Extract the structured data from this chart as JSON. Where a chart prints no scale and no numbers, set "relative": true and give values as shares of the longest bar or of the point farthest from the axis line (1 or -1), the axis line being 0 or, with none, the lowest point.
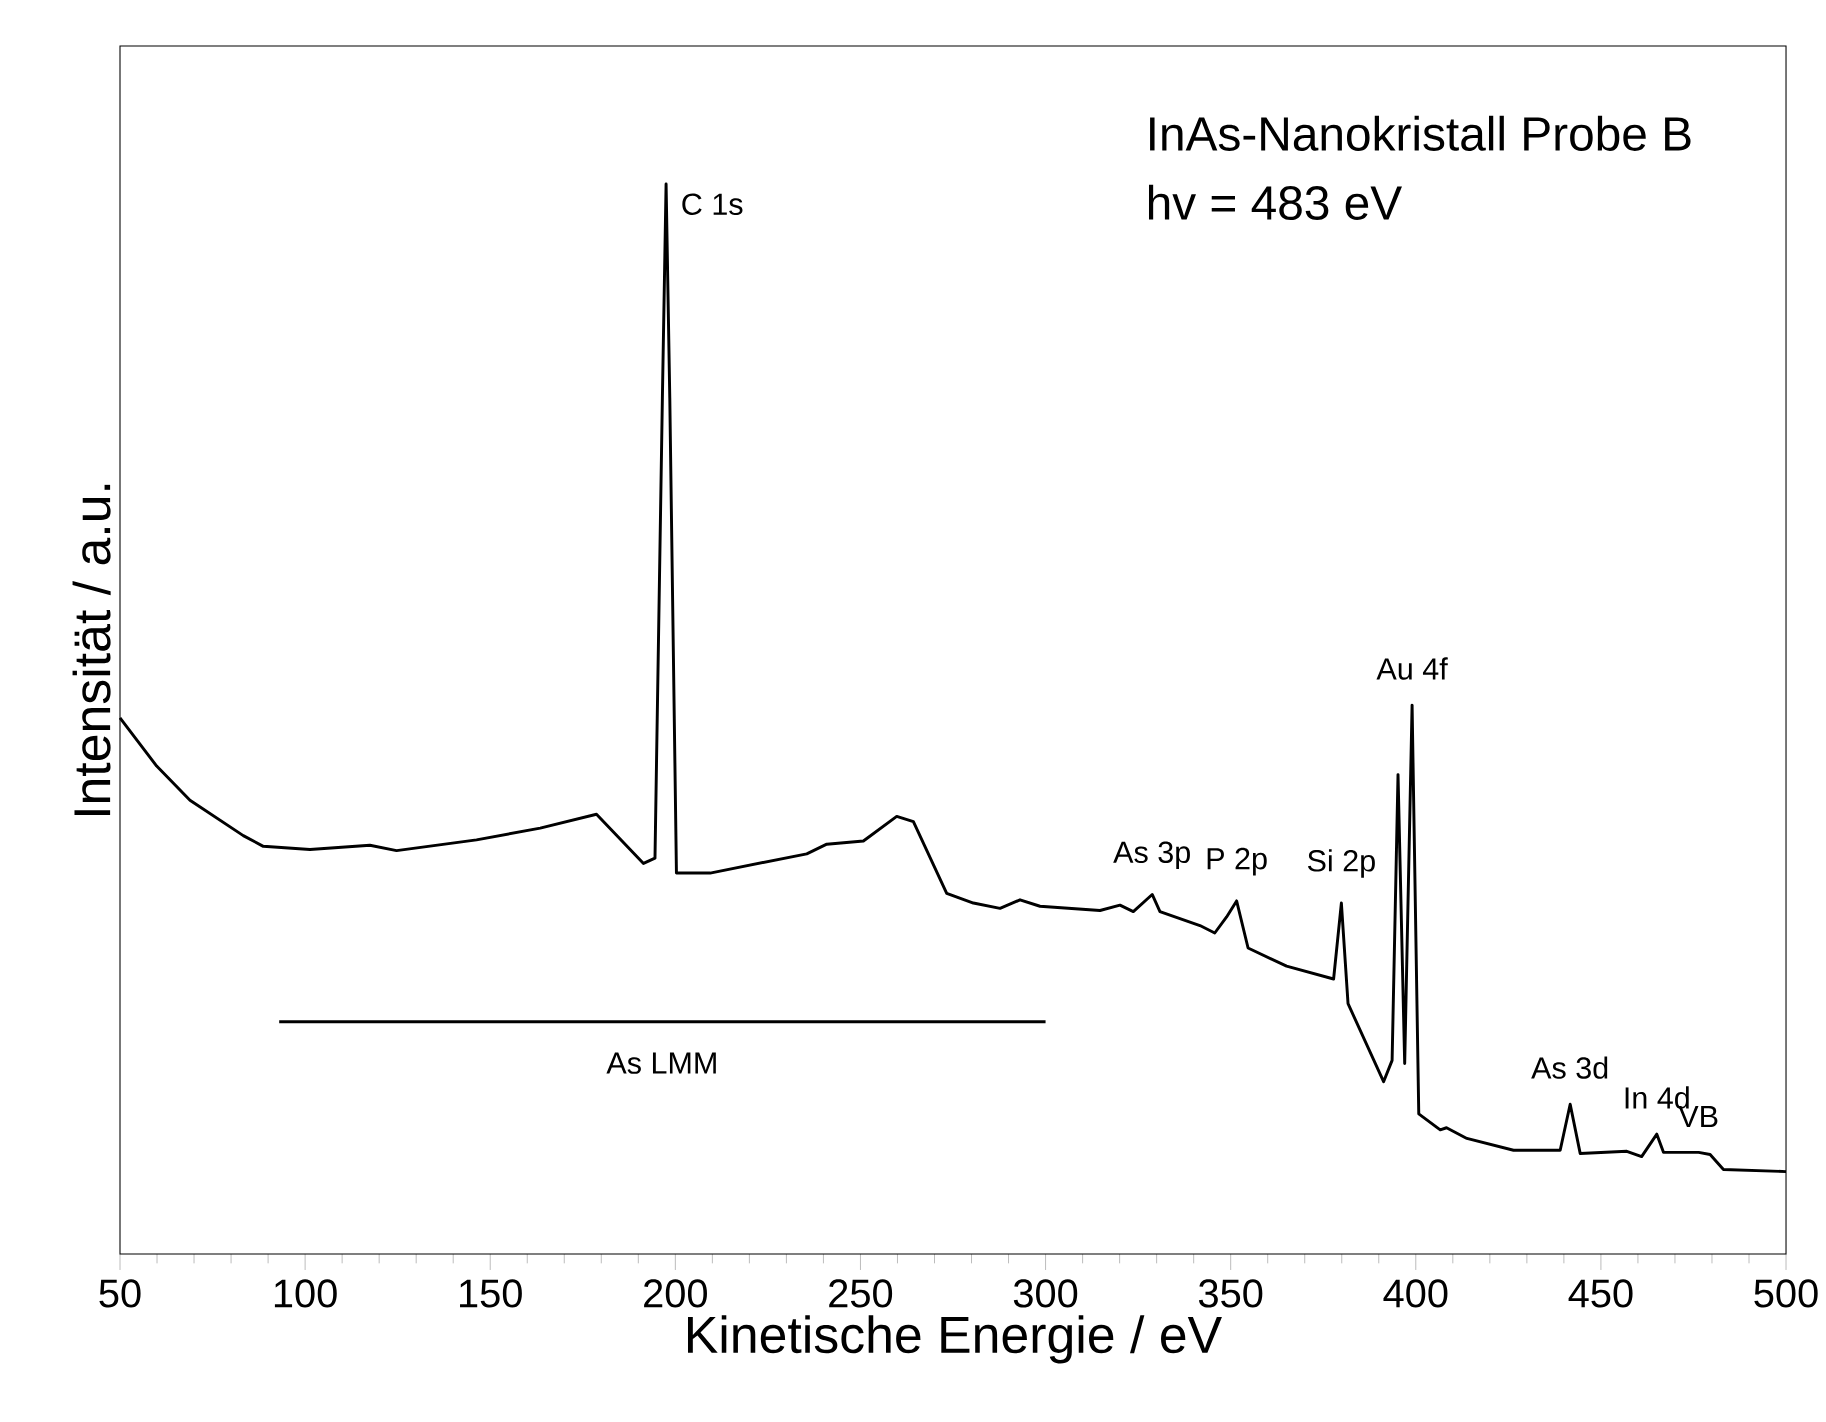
{
  "chart_data": {
    "type": "line",
    "title": "InAs-Nanokristall Probe B",
    "subtitle": "hv = 483 eV",
    "xlabel": "Kinetische Energie / eV",
    "ylabel": "Intensität / a.u.",
    "relative": true,
    "xlim": [
      50,
      500
    ],
    "xticks": [
      50,
      100,
      150,
      200,
      250,
      300,
      350,
      400,
      450,
      500
    ],
    "series": [
      {
        "color": "#000000",
        "x": [
          50,
          59.9,
          68.9,
          83.3,
          88.7,
          101.3,
          117.5,
          124.7,
          146.3,
          163.5,
          178.7,
          191.4,
          194.5,
          196.5,
          197.5,
          198.5,
          200.3,
          209.4,
          235.5,
          240.9,
          250.8,
          259.8,
          264.3,
          273.3,
          280.5,
          287.7,
          293.1,
          298.5,
          314.7,
          320.1,
          323.7,
          328.8,
          330.9,
          341.7,
          345.7,
          348.9,
          351.6,
          354.7,
          365.1,
          377.8,
          379.9,
          381.7,
          391.3,
          393.6,
          395.2,
          397,
          399,
          400.8,
          406.6,
          408.3,
          413.8,
          426.4,
          439,
          441.7,
          444.4,
          457,
          461,
          465.1,
          466.9,
          476.4,
          479.5,
          483.1,
          500
        ],
        "values": [
          0.501,
          0.456,
          0.424,
          0.391,
          0.381,
          0.378,
          0.382,
          0.377,
          0.387,
          0.398,
          0.411,
          0.365,
          0.37,
          0.8,
          1,
          0.8,
          0.356,
          0.356,
          0.374,
          0.383,
          0.386,
          0.409,
          0.404,
          0.337,
          0.328,
          0.323,
          0.331,
          0.325,
          0.321,
          0.326,
          0.32,
          0.336,
          0.32,
          0.307,
          0.3,
          0.315,
          0.33,
          0.286,
          0.269,
          0.257,
          0.328,
          0.234,
          0.161,
          0.181,
          0.448,
          0.178,
          0.513,
          0.131,
          0.116,
          0.118,
          0.108,
          0.097,
          0.097,
          0.14,
          0.094,
          0.096,
          0.091,
          0.112,
          0.095,
          0.095,
          0.093,
          0.079,
          0.077
        ]
      },
      {
        "type": "line",
        "color": "#000000",
        "x": [
          93,
          300
        ],
        "values": [
          0.217,
          0.217
        ]
      }
    ],
    "annotations": [
      {
        "text": "As LMM",
        "x": 196.5,
        "y": 0.217
      },
      {
        "text": "C 1s",
        "x": 197.5,
        "y": 1
      },
      {
        "text": "As 3p",
        "x": 328.8,
        "y": 0.336
      },
      {
        "text": "P 2p",
        "x": 351.6,
        "y": 0.33
      },
      {
        "text": "Si 2p",
        "x": 379.9,
        "y": 0.328
      },
      {
        "text": "Au 4f",
        "x": 399,
        "y": 0.513
      },
      {
        "text": "As 3d",
        "x": 441.7,
        "y": 0.14
      },
      {
        "text": "In 4d",
        "x": 465.1,
        "y": 0.112
      },
      {
        "text": "VB",
        "x": 476.4,
        "y": 0.095
      }
    ]
  }
}
